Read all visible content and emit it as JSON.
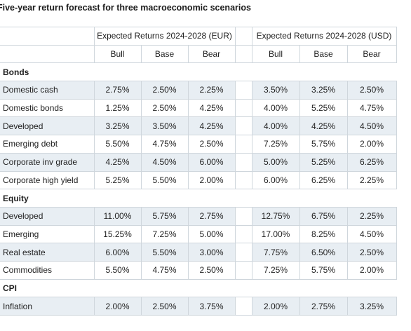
{
  "title": "Five-year return forecast for three macroeconomic scenarios",
  "header": {
    "eur_group": "Expected Returns 2024-2028 (EUR)",
    "usd_group": "Expected Returns 2024-2028 (USD)",
    "scenarios": [
      "Bull",
      "Base",
      "Bear",
      "Bull",
      "Base",
      "Bear"
    ]
  },
  "sections": [
    {
      "name": "Bonds",
      "rows": [
        {
          "label": "Domestic cash",
          "values": [
            "2.75%",
            "2.50%",
            "2.25%",
            "3.50%",
            "3.25%",
            "2.50%"
          ]
        },
        {
          "label": "Domestic bonds",
          "values": [
            "1.25%",
            "2.50%",
            "4.25%",
            "4.00%",
            "5.25%",
            "4.75%"
          ]
        },
        {
          "label": "Developed",
          "values": [
            "3.25%",
            "3.50%",
            "4.25%",
            "4.00%",
            "4.25%",
            "4.50%"
          ]
        },
        {
          "label": "Emerging debt",
          "values": [
            "5.50%",
            "4.75%",
            "2.50%",
            "7.25%",
            "5.75%",
            "2.00%"
          ]
        },
        {
          "label": "Corporate inv grade",
          "values": [
            "4.25%",
            "4.50%",
            "6.00%",
            "5.00%",
            "5.25%",
            "6.25%"
          ]
        },
        {
          "label": "Corporate high yield",
          "values": [
            "5.25%",
            "5.50%",
            "2.00%",
            "6.00%",
            "6.25%",
            "2.25%"
          ]
        }
      ]
    },
    {
      "name": "Equity",
      "rows": [
        {
          "label": "Developed",
          "values": [
            "11.00%",
            "5.75%",
            "2.75%",
            "12.75%",
            "6.75%",
            "2.25%"
          ]
        },
        {
          "label": "Emerging",
          "values": [
            "15.25%",
            "7.25%",
            "5.00%",
            "17.00%",
            "8.25%",
            "4.50%"
          ]
        },
        {
          "label": "Real estate",
          "values": [
            "6.00%",
            "5.50%",
            "3.00%",
            "7.75%",
            "6.50%",
            "2.50%"
          ]
        },
        {
          "label": "Commodities",
          "values": [
            "5.50%",
            "4.75%",
            "2.50%",
            "7.25%",
            "5.75%",
            "2.00%"
          ]
        }
      ]
    },
    {
      "name": "CPI",
      "rows": [
        {
          "label": "Inflation",
          "values": [
            "2.00%",
            "2.50%",
            "3.75%",
            "2.00%",
            "2.75%",
            "3.25%"
          ]
        }
      ]
    }
  ],
  "colors": {
    "row_shade": "#e8eef3",
    "grid_line": "#cfd6dc",
    "text": "#1f1f1f"
  }
}
